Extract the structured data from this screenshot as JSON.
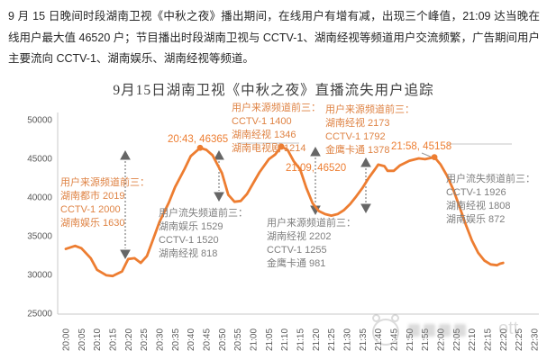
{
  "intro": {
    "text": "9 月 15 日晚间时段湖南卫视《中秋之夜》播出期间，在线用户有增有减，出现三个峰值，21:09 达当晚在线用户最大值 46520 户；节目播出时段湖南卫视与 CCTV-1、湖南经视等频道用户交流频繁，广告期间用户主要流向 CCTV-1、湖南娱乐、湖南经视等频道。"
  },
  "chart": {
    "title": "9月15日湖南卫视《中秋之夜》直播流失用户追踪"
  },
  "annotations": {
    "source_open": {
      "title": "用户来源频道前三：",
      "lines": [
        "湖南都市  2019",
        "CCTV-1 2000",
        "湖南娱乐  1630"
      ]
    },
    "loss_break1": {
      "title": "用户流失频道前三：",
      "lines": [
        "湖南娱乐  1529",
        "CCTV-1 1520",
        "湖南经视  818"
      ]
    },
    "source_peak2": {
      "title": "用户来源频道前三：",
      "lines": [
        "CCTV-1 1400",
        "湖南经视  1346",
        "湖南电视剧  1214"
      ]
    },
    "source_peak3": {
      "title": "用户来源频道前三：",
      "lines": [
        "湖南经视  2173",
        "CCTV-1 1792",
        "金鹰卡通  1378"
      ]
    },
    "source_break2": {
      "title": "用户来源频道前三：",
      "lines": [
        "湖南经视  2202",
        "CCTV-1 1255",
        "金鹰卡通  981"
      ]
    },
    "loss_end": {
      "title": "用户流失频道前三：",
      "lines": [
        "CCTV-1 1926",
        "湖南经视  1808",
        "湖南娱乐  872"
      ]
    }
  },
  "watermark": {
    "text": "ott"
  },
  "chart_data": {
    "type": "line",
    "title": "9月15日湖南卫视《中秋之夜》直播流失用户追踪",
    "xlabel": "",
    "ylabel": "",
    "ylim": [
      25000,
      50000
    ],
    "grid": false,
    "legend": "none",
    "line_color": "#ED7D31",
    "axis_color": "#C9C9C9",
    "tick_color": "#595959",
    "y_ticks": [
      50000,
      45000,
      40000,
      35000,
      30000,
      25000
    ],
    "x_ticks": [
      "20:00",
      "20:05",
      "20:10",
      "20:15",
      "20:20",
      "20:25",
      "20:30",
      "20:35",
      "20:40",
      "20:45",
      "20:50",
      "20:55",
      "21:00",
      "21:05",
      "21:10",
      "21:15",
      "21:20",
      "21:25",
      "21:30",
      "21:35",
      "21:40",
      "21:45",
      "21:50",
      "21:55",
      "22:00",
      "22:05",
      "22:10",
      "22:15",
      "22:20",
      "22:25",
      "22:30"
    ],
    "series": [
      {
        "points": [
          [
            "20:00",
            33300
          ],
          [
            "20:03",
            33700
          ],
          [
            "20:05",
            33400
          ],
          [
            "20:08",
            32100
          ],
          [
            "20:10",
            30600
          ],
          [
            "20:13",
            29900
          ],
          [
            "20:15",
            29800
          ],
          [
            "20:18",
            30400
          ],
          [
            "20:20",
            32000
          ],
          [
            "20:22",
            32100
          ],
          [
            "20:24",
            31500
          ],
          [
            "20:26",
            32400
          ],
          [
            "20:28",
            34600
          ],
          [
            "20:30",
            36800
          ],
          [
            "20:33",
            39300
          ],
          [
            "20:35",
            41300
          ],
          [
            "20:38",
            43600
          ],
          [
            "20:40",
            45300
          ],
          [
            "20:43",
            46365
          ],
          [
            "20:45",
            46100
          ],
          [
            "20:47",
            45400
          ],
          [
            "20:50",
            43100
          ],
          [
            "20:52",
            40300
          ],
          [
            "20:54",
            39400
          ],
          [
            "20:56",
            39500
          ],
          [
            "20:58",
            40400
          ],
          [
            "21:00",
            41800
          ],
          [
            "21:02",
            43200
          ],
          [
            "21:05",
            44900
          ],
          [
            "21:07",
            45500
          ],
          [
            "21:09",
            46520
          ],
          [
            "21:11",
            46100
          ],
          [
            "21:13",
            44600
          ],
          [
            "21:15",
            43600
          ],
          [
            "21:17",
            41200
          ],
          [
            "21:19",
            39200
          ],
          [
            "21:21",
            38200
          ],
          [
            "21:23",
            37800
          ],
          [
            "21:25",
            37600
          ],
          [
            "21:27",
            37800
          ],
          [
            "21:29",
            38300
          ],
          [
            "21:31",
            39100
          ],
          [
            "21:33",
            40100
          ],
          [
            "21:35",
            41200
          ],
          [
            "21:37",
            42500
          ],
          [
            "21:39",
            43600
          ],
          [
            "21:40",
            44200
          ],
          [
            "21:42",
            44000
          ],
          [
            "21:43",
            43400
          ],
          [
            "21:45",
            43400
          ],
          [
            "21:47",
            44100
          ],
          [
            "21:50",
            44700
          ],
          [
            "21:53",
            45000
          ],
          [
            "21:55",
            44900
          ],
          [
            "21:58",
            45158
          ],
          [
            "22:00",
            44200
          ],
          [
            "22:02",
            42800
          ],
          [
            "22:04",
            41000
          ],
          [
            "22:06",
            38800
          ],
          [
            "22:08",
            36500
          ],
          [
            "22:10",
            34400
          ],
          [
            "22:12",
            32800
          ],
          [
            "22:14",
            31800
          ],
          [
            "22:16",
            31300
          ],
          [
            "22:18",
            31200
          ],
          [
            "22:19",
            31400
          ],
          [
            "22:20",
            31500
          ]
        ]
      }
    ],
    "peaks": [
      {
        "time": "20:43",
        "value": 46365,
        "label": "20:43, 46365"
      },
      {
        "time": "21:09",
        "value": 46520,
        "label": "21:09, 46520"
      },
      {
        "time": "21:58",
        "value": 45158,
        "label": "21:58, 45158"
      }
    ]
  }
}
